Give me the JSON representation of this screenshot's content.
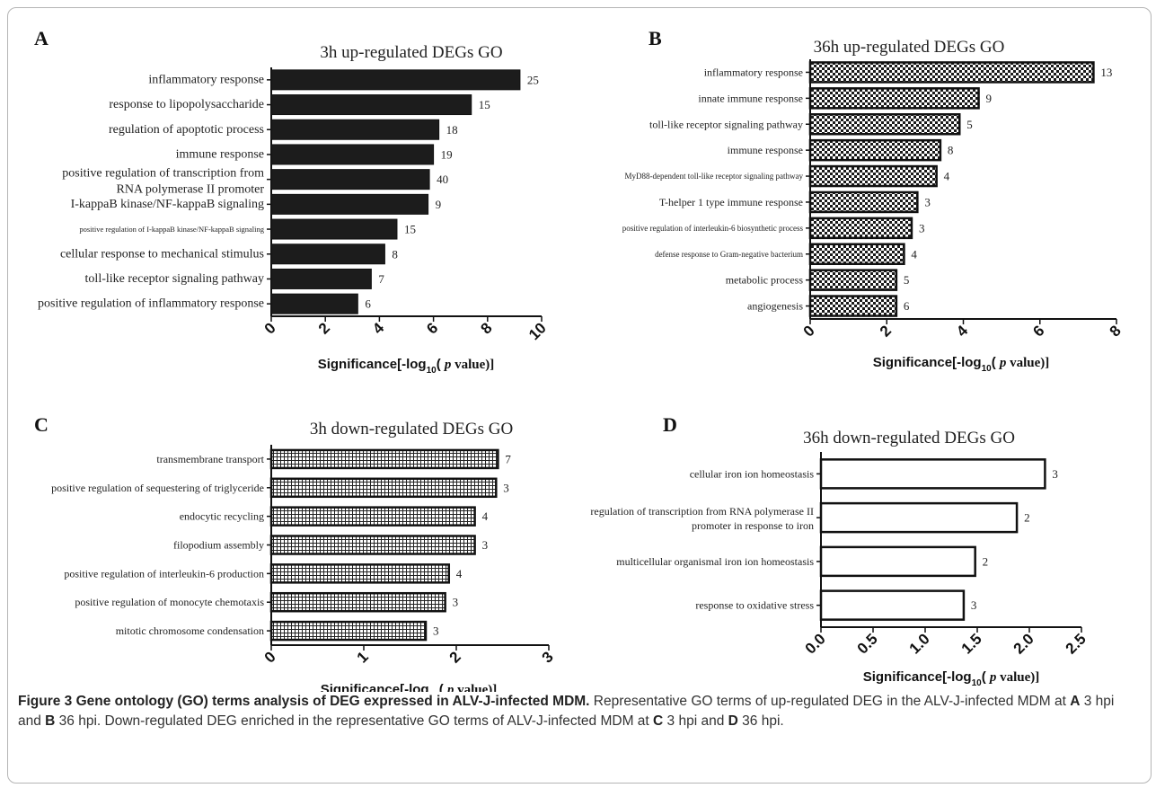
{
  "chart_data": [
    {
      "panel": "A",
      "type": "bar",
      "orientation": "horizontal",
      "title": "3h up-regulated DEGs   GO",
      "xlabel": "Significance[-log10( p value)]",
      "categories": [
        "inflammatory response",
        "response to lipopolysaccharide",
        "regulation of apoptotic process",
        "immune response",
        "positive regulation of transcription from|RNA polymerase II promoter",
        "I-kappaB kinase/NF-kappaB signaling",
        "positive regulation of I-kappaB kinase/NF-kappaB signaling",
        "cellular response to mechanical stimulus",
        "toll-like receptor signaling pathway",
        "positive regulation of inflammatory response"
      ],
      "values": [
        9.2,
        7.4,
        6.2,
        6.0,
        5.85,
        5.8,
        4.65,
        4.2,
        3.7,
        3.2
      ],
      "labels": [
        "25",
        "15",
        "18",
        "19",
        "40",
        "9",
        "15",
        "8",
        "7",
        "6"
      ],
      "xlim": [
        0,
        10
      ],
      "xticks": [
        "0",
        "2",
        "4",
        "6",
        "8",
        "10"
      ],
      "fill": "solid"
    },
    {
      "panel": "B",
      "type": "bar",
      "orientation": "horizontal",
      "title": "36h up-regulated DEGs   GO",
      "xlabel": "Significance[-log10( p value)]",
      "categories": [
        "inflammatory response",
        "innate immune response",
        "toll-like receptor signaling pathway",
        "immune response",
        "MyD88-dependent toll-like receptor signaling pathway",
        "T-helper 1 type immune response",
        "positive regulation of interleukin-6 biosynthetic process",
        "defense response to Gram-negative bacterium",
        "metabolic process",
        "angiogenesis"
      ],
      "values": [
        7.4,
        4.4,
        3.9,
        3.4,
        3.3,
        2.8,
        2.65,
        2.45,
        2.25,
        2.25
      ],
      "labels": [
        "13",
        "9",
        "5",
        "8",
        "4",
        "3",
        "3",
        "4",
        "5",
        "6"
      ],
      "xlim": [
        0,
        8
      ],
      "xticks": [
        "0",
        "2",
        "4",
        "6",
        "8"
      ],
      "fill": "checker"
    },
    {
      "panel": "C",
      "type": "bar",
      "orientation": "horizontal",
      "title": "3h down-regulated DEGs   GO",
      "xlabel": "Significance[-log10( p value)]",
      "categories": [
        "transmembrane transport",
        "positive regulation of sequestering of triglyceride",
        "endocytic recycling",
        "filopodium assembly",
        "positive regulation of interleukin-6 production",
        "positive regulation of monocyte chemotaxis",
        "mitotic chromosome condensation"
      ],
      "values": [
        2.45,
        2.43,
        2.2,
        2.2,
        1.92,
        1.88,
        1.67
      ],
      "labels": [
        "7",
        "3",
        "4",
        "3",
        "4",
        "3",
        "3"
      ],
      "xlim": [
        0,
        3
      ],
      "xticks": [
        "0",
        "1",
        "2",
        "3"
      ],
      "fill": "grid"
    },
    {
      "panel": "D",
      "type": "bar",
      "orientation": "horizontal",
      "title": "36h down-regulated DEGs  GO",
      "xlabel": "Significance[-log10( p value)]",
      "categories": [
        "cellular iron ion homeostasis",
        "regulation of transcription from RNA polymerase II|promoter in response to iron",
        "multicellular organismal iron ion homeostasis",
        "response to oxidative stress"
      ],
      "values": [
        2.15,
        1.88,
        1.48,
        1.37
      ],
      "labels": [
        "3",
        "2",
        "2",
        "3"
      ],
      "xlim": [
        0,
        2.5
      ],
      "xticks": [
        "0.0",
        "0.5",
        "1.0",
        "1.5",
        "2.0",
        "2.5"
      ],
      "fill": "white"
    }
  ],
  "caption": {
    "lead": "Figure 3  Gene ontology (GO) terms analysis of DEG expressed in ALV-J-infected MDM.",
    "t1": " Representative GO terms of up-regulated DEG in the ALV-J-infected MDM at ",
    "a": "A",
    "t2": " 3 hpi and ",
    "b": "B",
    "t3": " 36 hpi. Down-regulated DEG enriched in the representative GO terms of ALV-J-infected MDM at ",
    "c": "C",
    "t4": " 3 hpi and ",
    "d": "D",
    "t5": " 36 hpi."
  }
}
